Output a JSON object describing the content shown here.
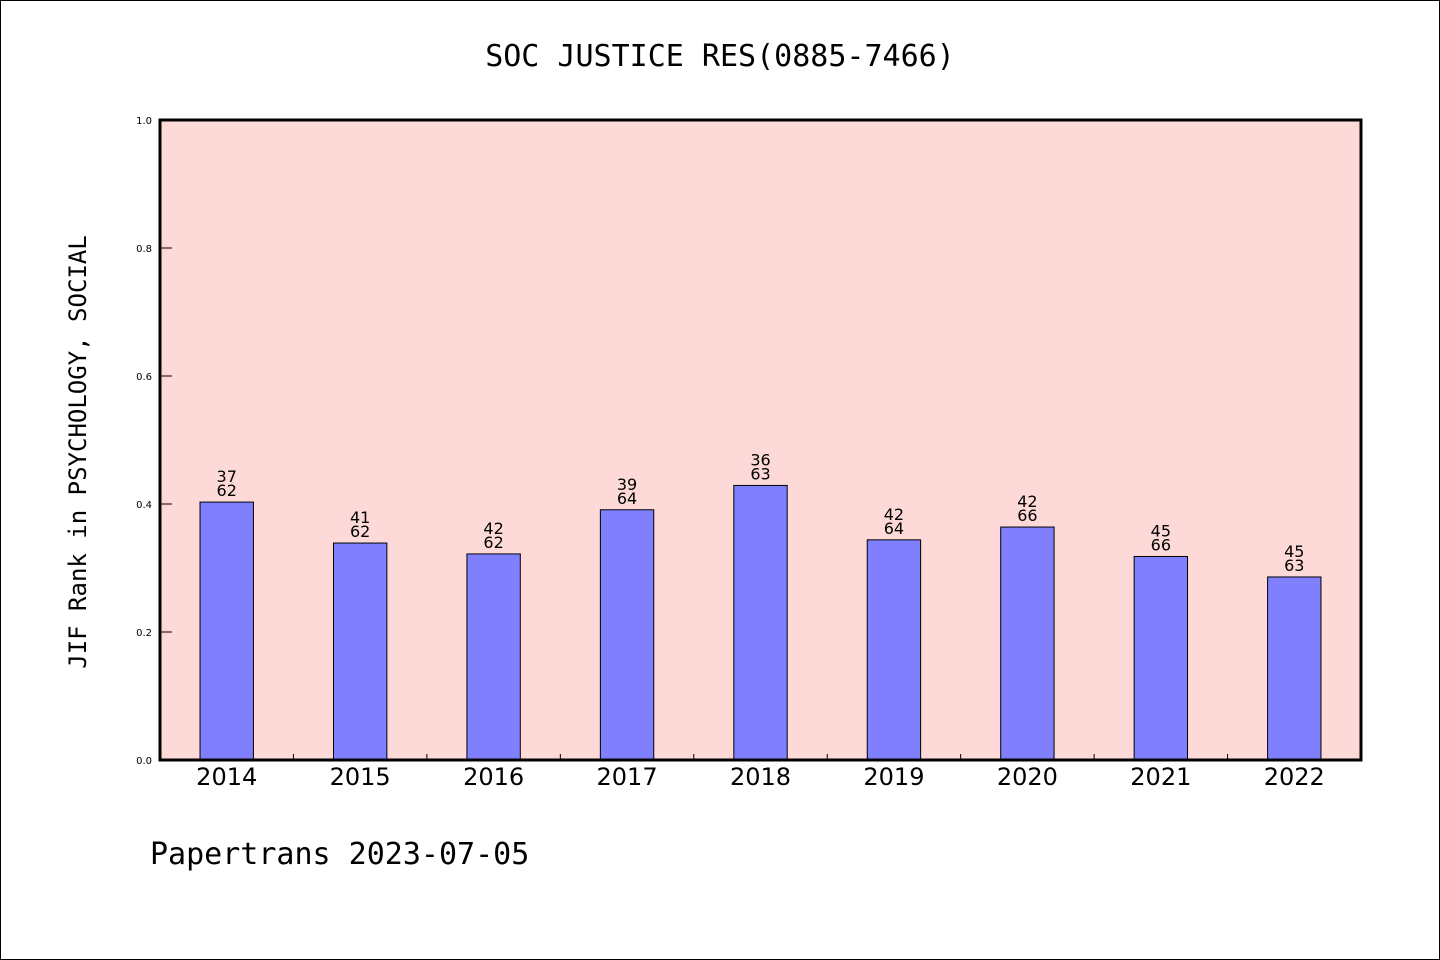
{
  "chart_data": {
    "type": "bar",
    "title": "SOC JUSTICE RES(0885-7466)",
    "ylabel": "JIF Rank in PSYCHOLOGY, SOCIAL",
    "xlabel": "",
    "ylim": [
      0,
      1.0
    ],
    "yticks": [
      "0.0",
      "0.2",
      "0.4",
      "0.6",
      "0.8",
      "1.0"
    ],
    "categories": [
      "2014",
      "2015",
      "2016",
      "2017",
      "2018",
      "2019",
      "2020",
      "2021",
      "2022"
    ],
    "values": [
      0.403,
      0.339,
      0.322,
      0.391,
      0.429,
      0.344,
      0.364,
      0.318,
      0.286
    ],
    "rank": [
      "37",
      "41",
      "42",
      "39",
      "36",
      "42",
      "42",
      "45",
      "45"
    ],
    "total": [
      "62",
      "62",
      "62",
      "64",
      "63",
      "64",
      "66",
      "66",
      "63"
    ],
    "bar_color": "#8080ff",
    "plot_background": "#fddad7",
    "grid": false
  },
  "footer": "Papertrans 2023-07-05"
}
